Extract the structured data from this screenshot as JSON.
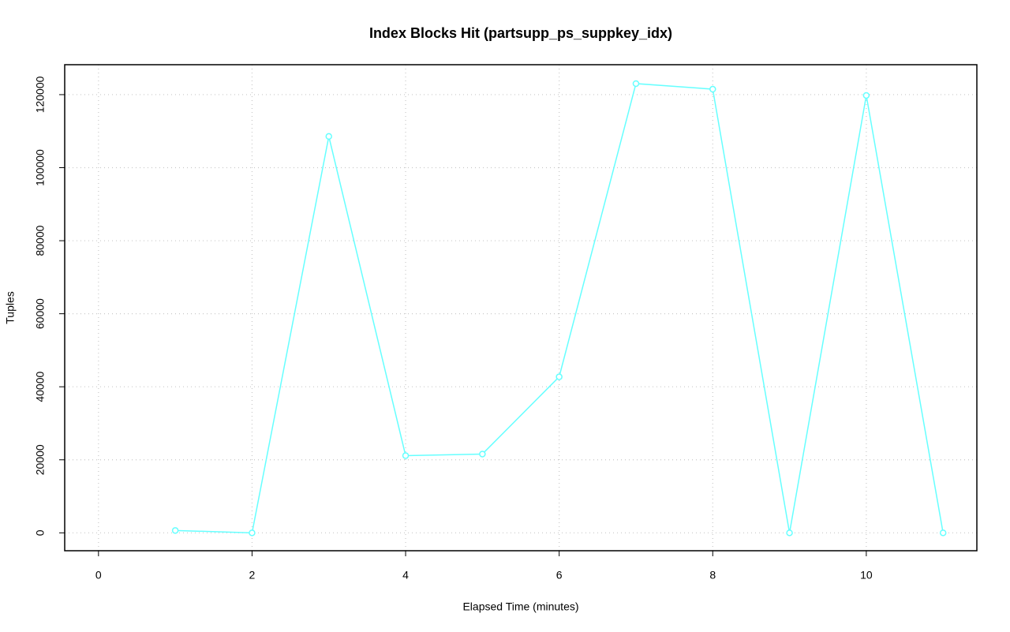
{
  "chart_data": {
    "type": "line",
    "title": "Index Blocks Hit (partsupp_ps_suppkey_idx)",
    "x_label": "Elapsed Time (minutes)",
    "y_label": "Tuples",
    "x": [
      1,
      2,
      3,
      4,
      5,
      6,
      7,
      8,
      9,
      10,
      11
    ],
    "values": [
      650,
      0,
      108560,
      21150,
      21580,
      42730,
      123020,
      121500,
      0,
      119780,
      0
    ],
    "color": "#66ffff",
    "xlim": [
      -0.44,
      11.44
    ],
    "xticks": [
      0,
      2,
      4,
      6,
      8,
      10
    ],
    "ylim": [
      -4900,
      128200
    ],
    "yticks": [
      0,
      20000,
      40000,
      60000,
      80000,
      100000,
      120000
    ],
    "grid": true
  }
}
